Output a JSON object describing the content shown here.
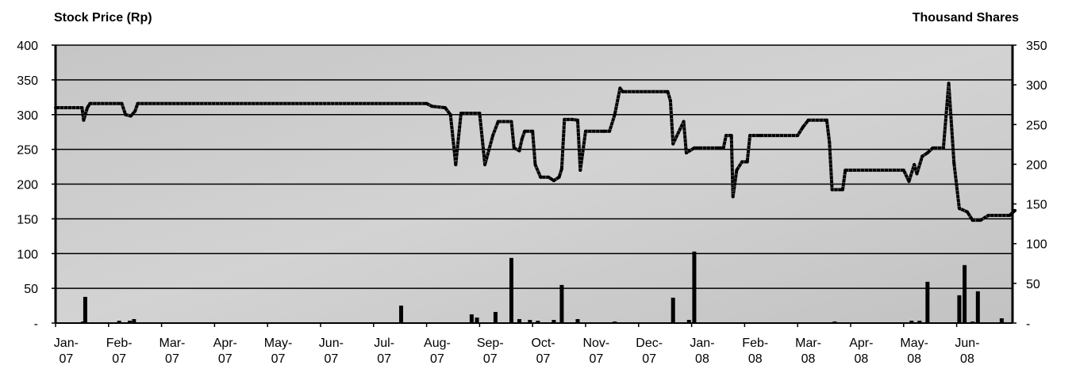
{
  "chart_data": {
    "type": "line",
    "left_axis_title": "Stock Price (Rp)",
    "right_axis_title": "Thousand  Shares",
    "left_ticks": [
      "-",
      "50",
      "100",
      "150",
      "200",
      "250",
      "300",
      "350",
      "400"
    ],
    "left_ylim": [
      0,
      400
    ],
    "right_ticks": [
      "-",
      "50",
      "100",
      "150",
      "200",
      "250",
      "300",
      "350"
    ],
    "right_ylim": [
      0,
      350
    ],
    "x_ticks": [
      [
        "Jan-",
        "07"
      ],
      [
        "Feb-",
        "07"
      ],
      [
        "Mar-",
        "07"
      ],
      [
        "Apr-",
        "07"
      ],
      [
        "May-",
        "07"
      ],
      [
        "Jun-",
        "07"
      ],
      [
        "Jul-",
        "07"
      ],
      [
        "Aug-",
        "07"
      ],
      [
        "Sep-",
        "07"
      ],
      [
        "Oct-",
        "07"
      ],
      [
        "Nov-",
        "07"
      ],
      [
        "Dec-",
        "07"
      ],
      [
        "Jan-",
        "08"
      ],
      [
        "Feb-",
        "08"
      ],
      [
        "Mar-",
        "08"
      ],
      [
        "Apr-",
        "08"
      ],
      [
        "May-",
        "08"
      ],
      [
        "Jun-",
        "08"
      ]
    ],
    "x_range": [
      0,
      18.1
    ],
    "grid": true,
    "series": [
      {
        "kind": "line",
        "axis": "left",
        "points": [
          [
            0,
            310
          ],
          [
            0.5,
            310
          ],
          [
            0.53,
            292
          ],
          [
            0.6,
            310
          ],
          [
            0.65,
            316
          ],
          [
            1.25,
            316
          ],
          [
            1.32,
            300
          ],
          [
            1.42,
            298
          ],
          [
            1.5,
            305
          ],
          [
            1.55,
            316
          ],
          [
            7.0,
            316
          ],
          [
            7.1,
            312
          ],
          [
            7.35,
            310
          ],
          [
            7.45,
            300
          ],
          [
            7.55,
            228
          ],
          [
            7.65,
            302
          ],
          [
            8.0,
            302
          ],
          [
            8.1,
            228
          ],
          [
            8.25,
            270
          ],
          [
            8.35,
            290
          ],
          [
            8.6,
            290
          ],
          [
            8.65,
            252
          ],
          [
            8.75,
            248
          ],
          [
            8.8,
            265
          ],
          [
            8.85,
            276
          ],
          [
            9.0,
            276
          ],
          [
            9.05,
            228
          ],
          [
            9.15,
            210
          ],
          [
            9.3,
            210
          ],
          [
            9.4,
            205
          ],
          [
            9.5,
            210
          ],
          [
            9.55,
            222
          ],
          [
            9.6,
            293
          ],
          [
            9.75,
            293
          ],
          [
            9.85,
            292
          ],
          [
            9.9,
            220
          ],
          [
            10.0,
            276
          ],
          [
            10.35,
            276
          ],
          [
            10.45,
            276
          ],
          [
            10.55,
            300
          ],
          [
            10.65,
            338
          ],
          [
            10.7,
            333
          ],
          [
            11.55,
            333
          ],
          [
            11.6,
            320
          ],
          [
            11.65,
            258
          ],
          [
            11.85,
            290
          ],
          [
            11.9,
            245
          ],
          [
            12.05,
            252
          ],
          [
            12.15,
            252
          ],
          [
            12.5,
            252
          ],
          [
            12.6,
            252
          ],
          [
            12.65,
            270
          ],
          [
            12.75,
            270
          ],
          [
            12.78,
            182
          ],
          [
            12.85,
            220
          ],
          [
            12.95,
            232
          ],
          [
            13.05,
            232
          ],
          [
            13.1,
            270
          ],
          [
            13.3,
            270
          ],
          [
            14.0,
            270
          ],
          [
            14.1,
            282
          ],
          [
            14.2,
            292
          ],
          [
            14.55,
            292
          ],
          [
            14.6,
            260
          ],
          [
            14.65,
            192
          ],
          [
            14.85,
            192
          ],
          [
            14.9,
            220
          ],
          [
            15.0,
            220
          ],
          [
            16.0,
            220
          ],
          [
            16.1,
            204
          ],
          [
            16.2,
            228
          ],
          [
            16.25,
            215
          ],
          [
            16.35,
            240
          ],
          [
            16.45,
            245
          ],
          [
            16.55,
            252
          ],
          [
            16.75,
            252
          ],
          [
            16.85,
            345
          ],
          [
            16.95,
            230
          ],
          [
            17.05,
            165
          ],
          [
            17.2,
            160
          ],
          [
            17.3,
            148
          ],
          [
            17.45,
            148
          ],
          [
            17.6,
            155
          ],
          [
            18.0,
            155
          ],
          [
            18.1,
            162
          ]
        ]
      },
      {
        "kind": "bar",
        "axis": "right",
        "points": [
          [
            0.52,
            2
          ],
          [
            0.56,
            33
          ],
          [
            1.2,
            3
          ],
          [
            1.4,
            3
          ],
          [
            1.48,
            5
          ],
          [
            6.52,
            22
          ],
          [
            7.45,
            1
          ],
          [
            7.75,
            1
          ],
          [
            7.82,
            1
          ],
          [
            7.85,
            11
          ],
          [
            7.95,
            7
          ],
          [
            8.3,
            14
          ],
          [
            8.6,
            82
          ],
          [
            8.75,
            5
          ],
          [
            8.95,
            4
          ],
          [
            9.1,
            3
          ],
          [
            9.4,
            4
          ],
          [
            9.55,
            48
          ],
          [
            9.85,
            5
          ],
          [
            10.55,
            2
          ],
          [
            11.55,
            1
          ],
          [
            11.65,
            32
          ],
          [
            11.95,
            4
          ],
          [
            12.05,
            90
          ],
          [
            14.7,
            2
          ],
          [
            16.15,
            3
          ],
          [
            16.3,
            3
          ],
          [
            16.45,
            52
          ],
          [
            16.95,
            1
          ],
          [
            17.05,
            35
          ],
          [
            17.15,
            73
          ],
          [
            17.3,
            2
          ],
          [
            17.4,
            40
          ],
          [
            17.85,
            6
          ]
        ]
      }
    ]
  }
}
